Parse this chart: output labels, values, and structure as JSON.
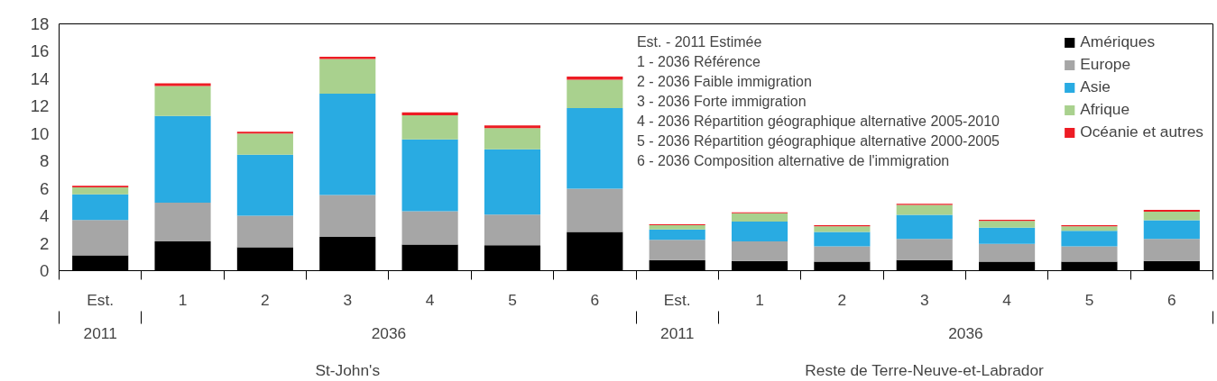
{
  "chart_data": {
    "type": "bar",
    "stacked": true,
    "categories": [
      "Est.",
      "1",
      "2",
      "3",
      "4",
      "5",
      "6",
      "Est.",
      "1",
      "2",
      "3",
      "4",
      "5",
      "6"
    ],
    "series": [
      {
        "name": "Amériques",
        "color": "#000000",
        "values": [
          1.12,
          2.13,
          1.71,
          2.46,
          1.9,
          1.85,
          2.83,
          0.78,
          0.7,
          0.65,
          0.78,
          0.65,
          0.65,
          0.7
        ]
      },
      {
        "name": "Europe",
        "color": "#a6a6a6",
        "values": [
          2.58,
          2.83,
          2.29,
          3.06,
          2.44,
          2.24,
          3.14,
          1.47,
          1.44,
          1.13,
          1.54,
          1.31,
          1.13,
          1.62
        ]
      },
      {
        "name": "Asie",
        "color": "#29abe2",
        "values": [
          1.87,
          6.33,
          4.46,
          7.39,
          5.24,
          4.76,
          5.88,
          0.75,
          1.44,
          1.04,
          1.75,
          1.17,
          1.12,
          1.36
        ]
      },
      {
        "name": "Afrique",
        "color": "#a9d18e",
        "values": [
          0.51,
          2.18,
          1.54,
          2.52,
          1.76,
          1.54,
          2.07,
          0.32,
          0.6,
          0.42,
          0.73,
          0.5,
          0.34,
          0.63
        ]
      },
      {
        "name": "Océanie et autres",
        "color": "#ed1c24",
        "values": [
          0.11,
          0.2,
          0.14,
          0.17,
          0.2,
          0.2,
          0.23,
          0.07,
          0.08,
          0.08,
          0.08,
          0.08,
          0.08,
          0.13
        ]
      }
    ],
    "ylim": [
      0,
      18
    ],
    "yticks": [
      0,
      2,
      4,
      6,
      8,
      10,
      12,
      14,
      16,
      18
    ],
    "legend": "top right",
    "annotations": [
      "2011",
      "2036",
      "2011",
      "2036",
      "St-John's",
      "Reste de Terre-Neuve-et-Labrador",
      "Est. - 2011 Estimée",
      "1  -  2036 Référence",
      "2  -  2036 Faible immigration",
      "3  -  2036 Forte immigration",
      "4  -  2036 Répartition géographique alternative 2005-2010",
      "5  -  2036 Répartition géographique alternative 2000-2005",
      "6  -  2036 Composition alternative de l'immigration"
    ]
  }
}
